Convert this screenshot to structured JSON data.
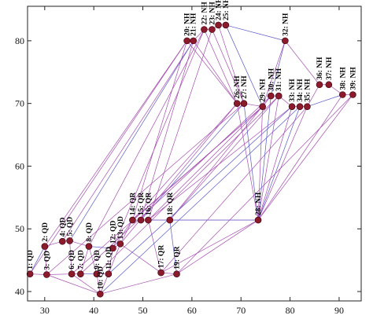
{
  "chart_data": {
    "type": "scatter",
    "title": "",
    "xlabel": "",
    "ylabel": "",
    "xlim": [
      26.5,
      94.5
    ],
    "ylim": [
      38.5,
      85.5
    ],
    "xticks": [
      30,
      40,
      50,
      60,
      70,
      80,
      90
    ],
    "yticks": [
      40,
      50,
      60,
      70,
      80
    ],
    "grid": false,
    "colors": {
      "point": "#8b1a2b",
      "edge": "#a64db0",
      "edge_alt": "#5a5ac8",
      "frame": "#222222"
    },
    "points": [
      {
        "id": "1",
        "label": "1: QD",
        "x": 27.0,
        "y": 42.8
      },
      {
        "id": "2",
        "label": "2: QD",
        "x": 30.0,
        "y": 47.2
      },
      {
        "id": "3",
        "label": "3: QD",
        "x": 30.4,
        "y": 42.7
      },
      {
        "id": "4",
        "label": "4: QD",
        "x": 33.6,
        "y": 48.0
      },
      {
        "id": "5",
        "label": "5: QD",
        "x": 35.1,
        "y": 48.1
      },
      {
        "id": "6",
        "label": "6: QD",
        "x": 35.5,
        "y": 42.8
      },
      {
        "id": "7",
        "label": "7: QD",
        "x": 37.3,
        "y": 42.8
      },
      {
        "id": "8",
        "label": "8: QD",
        "x": 39.0,
        "y": 47.2
      },
      {
        "id": "9",
        "label": "9: QD",
        "x": 40.6,
        "y": 42.8
      },
      {
        "id": "10",
        "label": "10: QD",
        "x": 41.3,
        "y": 39.6
      },
      {
        "id": "11",
        "label": "11: QD",
        "x": 43.0,
        "y": 42.8
      },
      {
        "id": "12",
        "label": "12: QD",
        "x": 43.9,
        "y": 46.9
      },
      {
        "id": "13",
        "label": "13: QD",
        "x": 45.4,
        "y": 47.6
      },
      {
        "id": "14",
        "label": "14: QR",
        "x": 47.9,
        "y": 51.4
      },
      {
        "id": "15",
        "label": "15: QR",
        "x": 49.6,
        "y": 51.4
      },
      {
        "id": "16",
        "label": "16: QR",
        "x": 51.1,
        "y": 51.4
      },
      {
        "id": "17",
        "label": "17: QR",
        "x": 53.7,
        "y": 43.0
      },
      {
        "id": "18",
        "label": "18: QR",
        "x": 55.5,
        "y": 51.4
      },
      {
        "id": "19",
        "label": "19: QR",
        "x": 56.9,
        "y": 42.8
      },
      {
        "id": "20",
        "label": "20: NH",
        "x": 59.0,
        "y": 80.0
      },
      {
        "id": "21",
        "label": "21: NH",
        "x": 60.3,
        "y": 80.0
      },
      {
        "id": "22",
        "label": "22: NH",
        "x": 62.5,
        "y": 81.8
      },
      {
        "id": "23",
        "label": "23: NH",
        "x": 64.1,
        "y": 81.8
      },
      {
        "id": "24",
        "label": "24: NH",
        "x": 65.4,
        "y": 82.5
      },
      {
        "id": "25",
        "label": "25: NH",
        "x": 66.9,
        "y": 82.5
      },
      {
        "id": "26",
        "label": "26: NH",
        "x": 69.2,
        "y": 70.0
      },
      {
        "id": "27",
        "label": "27: NH",
        "x": 70.6,
        "y": 70.0
      },
      {
        "id": "28",
        "label": "28: NH",
        "x": 73.5,
        "y": 51.4
      },
      {
        "id": "29",
        "label": "29: NH",
        "x": 74.4,
        "y": 69.5
      },
      {
        "id": "30",
        "label": "30: NH",
        "x": 76.1,
        "y": 71.2
      },
      {
        "id": "31",
        "label": "31: NH",
        "x": 77.7,
        "y": 71.2
      },
      {
        "id": "32",
        "label": "32: NH",
        "x": 79.0,
        "y": 80.0
      },
      {
        "id": "33",
        "label": "33: NH",
        "x": 80.4,
        "y": 69.5
      },
      {
        "id": "34",
        "label": "34: NH",
        "x": 82.0,
        "y": 69.5
      },
      {
        "id": "35",
        "label": "35: NH",
        "x": 83.5,
        "y": 69.5
      },
      {
        "id": "36",
        "label": "36: NH",
        "x": 86.0,
        "y": 73.0
      },
      {
        "id": "37",
        "label": "37: NH",
        "x": 87.9,
        "y": 73.0
      },
      {
        "id": "38",
        "label": "38: NH",
        "x": 90.7,
        "y": 71.4
      },
      {
        "id": "39",
        "label": "39: NH",
        "x": 92.8,
        "y": 71.4
      }
    ],
    "edges": [
      [
        "1",
        "2"
      ],
      [
        "1",
        "3"
      ],
      [
        "2",
        "3"
      ],
      [
        "2",
        "4"
      ],
      [
        "3",
        "6"
      ],
      [
        "4",
        "5"
      ],
      [
        "5",
        "6"
      ],
      [
        "6",
        "7"
      ],
      [
        "5",
        "8"
      ],
      [
        "7",
        "8"
      ],
      [
        "7",
        "9"
      ],
      [
        "8",
        "9"
      ],
      [
        "9",
        "10"
      ],
      [
        "10",
        "11"
      ],
      [
        "9",
        "11"
      ],
      [
        "8",
        "12"
      ],
      [
        "11",
        "12"
      ],
      [
        "12",
        "13"
      ],
      [
        "11",
        "13"
      ],
      [
        "13",
        "14"
      ],
      [
        "14",
        "15"
      ],
      [
        "15",
        "16"
      ],
      [
        "16",
        "18"
      ],
      [
        "13",
        "17"
      ],
      [
        "17",
        "19"
      ],
      [
        "18",
        "19"
      ],
      [
        "16",
        "17"
      ],
      [
        "18",
        "28"
      ],
      [
        "19",
        "28"
      ],
      [
        "17",
        "28"
      ],
      [
        "15",
        "28"
      ],
      [
        "12",
        "14"
      ],
      [
        "3",
        "10"
      ],
      [
        "10",
        "19"
      ],
      [
        "6",
        "10"
      ],
      [
        "20",
        "21"
      ],
      [
        "21",
        "22"
      ],
      [
        "22",
        "23"
      ],
      [
        "23",
        "24"
      ],
      [
        "24",
        "25"
      ],
      [
        "25",
        "32"
      ],
      [
        "32",
        "36"
      ],
      [
        "36",
        "37"
      ],
      [
        "37",
        "38"
      ],
      [
        "38",
        "39"
      ],
      [
        "32",
        "30"
      ],
      [
        "32",
        "29"
      ],
      [
        "26",
        "27"
      ],
      [
        "27",
        "29"
      ],
      [
        "29",
        "30"
      ],
      [
        "30",
        "31"
      ],
      [
        "31",
        "33"
      ],
      [
        "33",
        "34"
      ],
      [
        "34",
        "35"
      ],
      [
        "35",
        "36"
      ],
      [
        "35",
        "38"
      ],
      [
        "21",
        "26"
      ],
      [
        "22",
        "26"
      ],
      [
        "23",
        "27"
      ],
      [
        "24",
        "27"
      ],
      [
        "25",
        "29"
      ],
      [
        "20",
        "26"
      ],
      [
        "1",
        "20"
      ],
      [
        "2",
        "20"
      ],
      [
        "4",
        "21"
      ],
      [
        "5",
        "21"
      ],
      [
        "8",
        "22"
      ],
      [
        "12",
        "22"
      ],
      [
        "13",
        "26"
      ],
      [
        "14",
        "26"
      ],
      [
        "15",
        "27"
      ],
      [
        "16",
        "29"
      ],
      [
        "18",
        "30"
      ],
      [
        "18",
        "31"
      ],
      [
        "28",
        "33"
      ],
      [
        "28",
        "34"
      ],
      [
        "28",
        "35"
      ],
      [
        "28",
        "39"
      ],
      [
        "19",
        "39"
      ],
      [
        "17",
        "35"
      ],
      [
        "11",
        "33"
      ],
      [
        "9",
        "31"
      ],
      [
        "7",
        "30"
      ],
      [
        "6",
        "29"
      ],
      [
        "3",
        "27"
      ],
      [
        "10",
        "34"
      ],
      [
        "14",
        "29"
      ],
      [
        "16",
        "33"
      ],
      [
        "28",
        "38"
      ],
      [
        "26",
        "28"
      ],
      [
        "27",
        "28"
      ],
      [
        "20",
        "14"
      ],
      [
        "21",
        "15"
      ],
      [
        "23",
        "16"
      ],
      [
        "31",
        "28"
      ],
      [
        "30",
        "28"
      ],
      [
        "29",
        "28"
      ]
    ]
  }
}
